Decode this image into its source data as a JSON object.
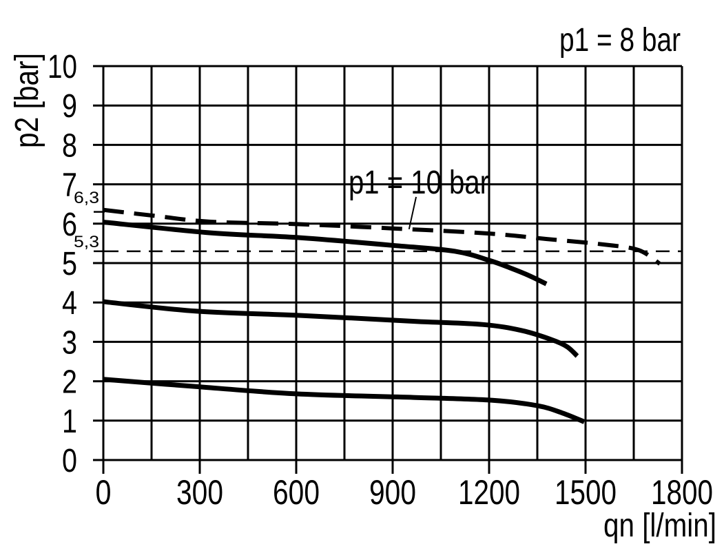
{
  "page": {
    "background": "#ffffff",
    "ink": "#000000"
  },
  "chart_data": {
    "type": "line",
    "title": "p1 = 8 bar",
    "xlabel": "qn [l/min]",
    "ylabel": "p2 [bar]",
    "xlim": [
      0,
      1800
    ],
    "ylim": [
      0,
      10
    ],
    "x_tick_values": [
      0,
      300,
      600,
      900,
      1200,
      1500,
      1800
    ],
    "x_tick_labels": [
      "0",
      "300",
      "600",
      "900",
      "1200",
      "1500",
      "1800"
    ],
    "x_grid_step": 150,
    "y_tick_values": [
      0,
      1,
      2,
      3,
      4,
      5,
      6,
      7,
      8,
      9,
      10
    ],
    "y_tick_labels": [
      "0",
      "1",
      "2",
      "3",
      "4",
      "5",
      "6",
      "7",
      "8",
      "9",
      "10"
    ],
    "grid": "on",
    "legend": "none",
    "annotation": {
      "text": "p1 = 10 bar",
      "leader_from": [
        973,
        6.68
      ],
      "leader_to": [
        951,
        5.86
      ]
    },
    "reference_levels": [
      {
        "label": "6,3",
        "value": 6.3,
        "line": "tick-only"
      },
      {
        "label": "5,3",
        "value": 5.3,
        "line": "thin-dashed-full-width"
      }
    ],
    "series": [
      {
        "id": "p1-10-bar",
        "label": "p1 = 10 bar",
        "style": "dashed-thick",
        "points": [
          [
            0,
            6.35
          ],
          [
            160,
            6.2
          ],
          [
            330,
            6.05
          ],
          [
            600,
            5.99
          ],
          [
            900,
            5.88
          ],
          [
            1200,
            5.75
          ],
          [
            1380,
            5.61
          ],
          [
            1558,
            5.47
          ],
          [
            1665,
            5.33
          ],
          [
            1731,
            4.98
          ]
        ]
      },
      {
        "id": "p1-8-bar-setting-6",
        "label": "",
        "style": "solid-thick",
        "points": [
          [
            0,
            6.04
          ],
          [
            330,
            5.77
          ],
          [
            600,
            5.65
          ],
          [
            900,
            5.45
          ],
          [
            1093,
            5.3
          ],
          [
            1204,
            5.06
          ],
          [
            1271,
            4.86
          ],
          [
            1322,
            4.69
          ],
          [
            1378,
            4.47
          ]
        ]
      },
      {
        "id": "p1-8-bar-setting-4",
        "label": "",
        "style": "solid-thick",
        "points": [
          [
            0,
            4.02
          ],
          [
            287,
            3.78
          ],
          [
            615,
            3.67
          ],
          [
            973,
            3.52
          ],
          [
            1179,
            3.44
          ],
          [
            1300,
            3.29
          ],
          [
            1393,
            3.06
          ],
          [
            1442,
            2.88
          ],
          [
            1474,
            2.64
          ]
        ]
      },
      {
        "id": "p1-8-bar-setting-2",
        "label": "",
        "style": "solid-thick",
        "points": [
          [
            0,
            2.05
          ],
          [
            280,
            1.87
          ],
          [
            600,
            1.68
          ],
          [
            965,
            1.59
          ],
          [
            1207,
            1.52
          ],
          [
            1350,
            1.38
          ],
          [
            1429,
            1.19
          ],
          [
            1496,
            0.97
          ]
        ]
      }
    ]
  }
}
